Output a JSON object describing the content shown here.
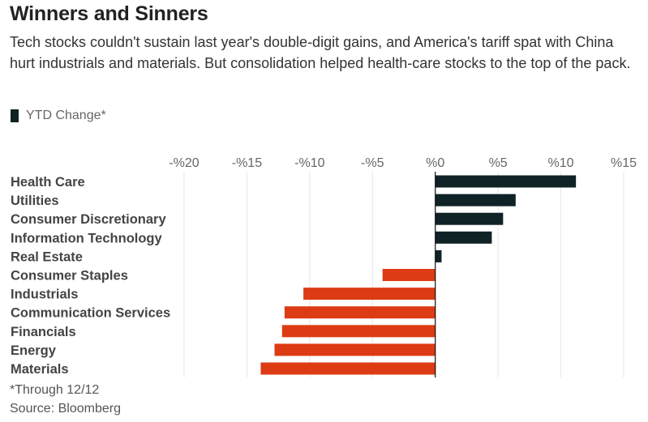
{
  "title": "Winners and Sinners",
  "subtitle": "Tech stocks couldn't sustain last year's double-digit gains, and America's tariff spat with China hurt industrials and materials. But consolidation helped health-care stocks to the top of the pack.",
  "legend": {
    "label": "YTD Change*"
  },
  "footnote": "*Through 12/12",
  "source": "Source: Bloomberg",
  "colors": {
    "positive": "#0f2326",
    "negative": "#dd3b14",
    "grid": "#e6e6e6",
    "zero": "#111111"
  },
  "chart_data": {
    "type": "bar",
    "orientation": "horizontal",
    "categories": [
      "Health Care",
      "Utilities",
      "Consumer Discretionary",
      "Information Technology",
      "Real Estate",
      "Consumer Staples",
      "Industrials",
      "Communication Services",
      "Financials",
      "Energy",
      "Materials"
    ],
    "series": [
      {
        "name": "YTD Change*",
        "values": [
          11.2,
          6.4,
          5.4,
          4.5,
          0.5,
          -4.2,
          -10.5,
          -12.0,
          -12.2,
          -12.8,
          -13.9
        ]
      }
    ],
    "xlim": [
      -20,
      15
    ],
    "xticks": [
      -20,
      -15,
      -10,
      -5,
      0,
      5,
      10,
      15
    ],
    "xtick_labels": [
      "-%20",
      "-%15",
      "-%10",
      "-%5",
      "%0",
      "%5",
      "%10",
      "%15"
    ],
    "grid": true,
    "legend_position": "top-left"
  }
}
